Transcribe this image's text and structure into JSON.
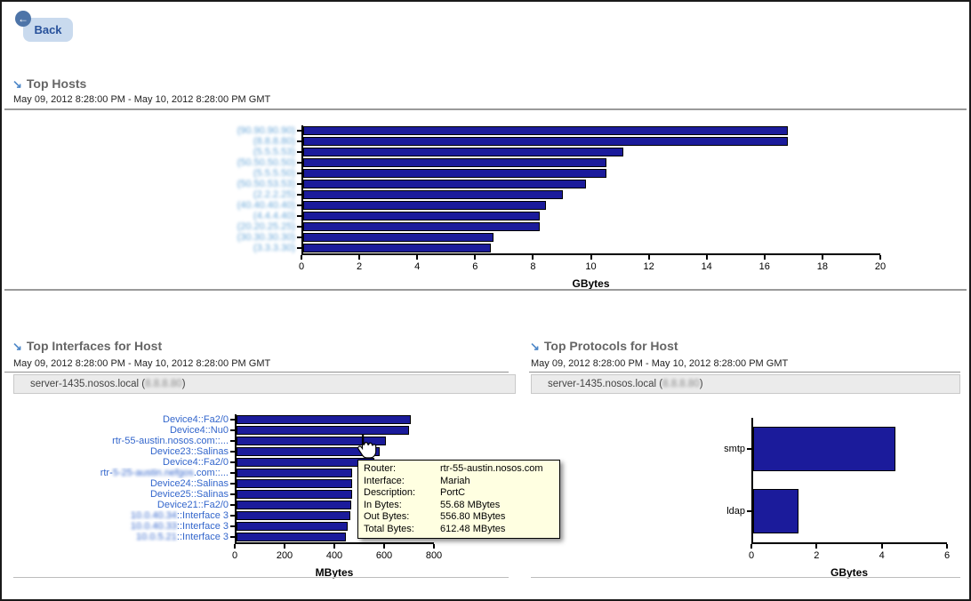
{
  "page": {
    "back_label": "Back"
  },
  "sections": {
    "top_hosts": {
      "title": "Top Hosts",
      "date_range": "May 09, 2012 8:28:00 PM - May 10, 2012 8:28:00 PM GMT"
    },
    "top_interfaces": {
      "title": "Top Interfaces for Host",
      "date_range": "May 09, 2012 8:28:00 PM - May 10, 2012 8:28:00 PM GMT",
      "host_prefix": "server-1435.nosos.local (",
      "host_ip_redacted": "8.8.8.80",
      "host_suffix": ")"
    },
    "top_protocols": {
      "title": "Top Protocols for Host",
      "date_range": "May 09, 2012 8:28:00 PM - May 10, 2012 8:28:00 PM GMT",
      "host_prefix": "server-1435.nosos.local (",
      "host_ip_redacted": "8.8.8.80",
      "host_suffix": ")"
    }
  },
  "tooltip": {
    "rows": [
      {
        "label": "Router:",
        "value": "rtr-55-austin.nosos.com"
      },
      {
        "label": "Interface:",
        "value": "Mariah"
      },
      {
        "label": "Description:",
        "value": "PortC"
      },
      {
        "label": "In Bytes:",
        "value": "55.68 MBytes"
      },
      {
        "label": "Out Bytes:",
        "value": "556.80 MBytes"
      },
      {
        "label": "Total Bytes:",
        "value": "612.48 MBytes"
      }
    ]
  },
  "chart_data": [
    {
      "id": "top_hosts",
      "type": "bar",
      "orientation": "horizontal",
      "title": "Top Hosts",
      "categories": [
        "(90.90.90.90)",
        "(8.8.8.80)",
        "(5.5.5.53)",
        "(50.50.50.50)",
        "(5.5.5.50)",
        "(50.50.53.53)",
        "(2.2.2.25)",
        "(40.40.40.40)",
        "(4.4.4.40)",
        "(20.20.25.25)",
        "(30.30.30.30)",
        "(3.3.3.30)"
      ],
      "categories_redacted": true,
      "labels_clickable": true,
      "values": [
        16.8,
        16.8,
        11.1,
        10.5,
        10.5,
        9.8,
        9.0,
        8.4,
        8.2,
        8.2,
        6.6,
        6.5
      ],
      "xlabel": "GBytes",
      "xlim": [
        0,
        20
      ],
      "xticks": [
        0,
        2,
        4,
        6,
        8,
        10,
        12,
        14,
        16,
        18,
        20
      ],
      "grid": false,
      "legend": "none"
    },
    {
      "id": "top_interfaces",
      "type": "bar",
      "orientation": "horizontal",
      "title": "Top Interfaces for Host",
      "categories": [
        [
          [
            "Device4::Fa2/0",
            false
          ]
        ],
        [
          [
            "Device4::Nu0",
            false
          ]
        ],
        [
          [
            "rtr-55-austin.nosos.com::...",
            false
          ]
        ],
        [
          [
            "Device23::Salinas",
            false
          ]
        ],
        [
          [
            "Device4::Fa2/0",
            false
          ]
        ],
        [
          [
            "rtr-",
            false
          ],
          [
            "5-25-austin.nefgos",
            true
          ],
          [
            ".com::...",
            false
          ]
        ],
        [
          [
            "Device24::Salinas",
            false
          ]
        ],
        [
          [
            "Device25::Salinas",
            false
          ]
        ],
        [
          [
            "Device21::Fa2/0",
            false
          ]
        ],
        [
          [
            "10.0.40.34",
            true
          ],
          [
            "::Interface 3",
            false
          ]
        ],
        [
          [
            "10.0.40.33",
            true
          ],
          [
            "::Interface 3",
            false
          ]
        ],
        [
          [
            "10.0.5.21",
            true
          ],
          [
            "::Interface 3",
            false
          ]
        ]
      ],
      "labels_clickable": true,
      "values": [
        705,
        700,
        605,
        580,
        560,
        470,
        470,
        470,
        465,
        460,
        450,
        445
      ],
      "xlabel": "MBytes",
      "xlim": [
        0,
        800
      ],
      "xticks": [
        0,
        200,
        400,
        600,
        800
      ],
      "grid": false,
      "legend": "none"
    },
    {
      "id": "top_protocols",
      "type": "bar",
      "orientation": "horizontal",
      "title": "Top Protocols for Host",
      "categories": [
        "smtp",
        "ldap"
      ],
      "labels_clickable": false,
      "values": [
        4.4,
        1.4
      ],
      "xlabel": "GBytes",
      "xlim": [
        0,
        6
      ],
      "xticks": [
        0,
        2,
        4,
        6
      ],
      "grid": false,
      "legend": "none"
    }
  ],
  "colors": {
    "bar_fill": "#1b1b9b",
    "bar_border": "#000000",
    "category_link": "#3366cc",
    "redacted_host_text": "#6aa7d8",
    "tooltip_bg": "#ffffe1",
    "section_title": "#666666",
    "section_arrow": "#4d87c8",
    "divider": "#9a9a9a",
    "host_bar_bg": "#ebebeb",
    "back_button_bg": "#c9daee",
    "back_button_text": "#27519b",
    "back_circle_bg": "#4d74a8"
  }
}
